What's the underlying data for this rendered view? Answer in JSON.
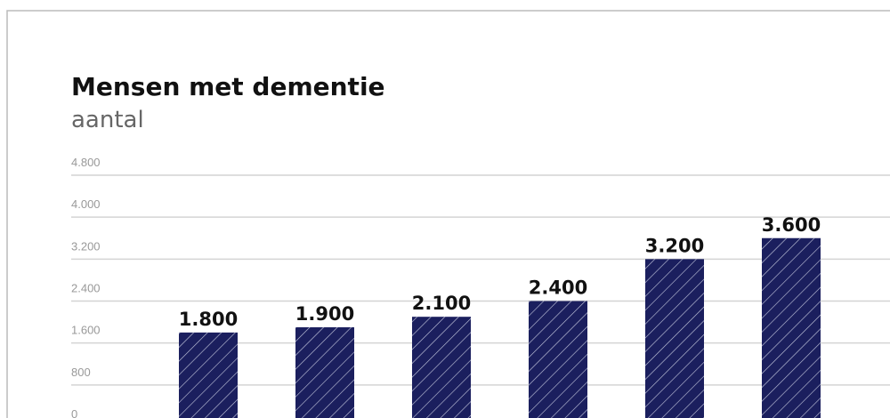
{
  "chart_data": {
    "type": "bar",
    "title": "Mensen met dementie",
    "subtitle": "aantal",
    "categories": [
      null,
      null,
      null,
      null,
      null,
      null
    ],
    "values": [
      1800,
      1900,
      2100,
      2400,
      3200,
      3600
    ],
    "value_labels": [
      "1.800",
      "1.900",
      "2.100",
      "2.400",
      "3.200",
      "3.600"
    ],
    "color": "#1b1f5e",
    "ylim": [
      0,
      4800
    ],
    "yticks": [
      0,
      {
        "value": 800,
        "label": "800"
      },
      {
        "value": 1600,
        "label": "1.600"
      },
      {
        "value": 2400,
        "label": "2.400"
      },
      {
        "value": 3200,
        "label": "3.200"
      },
      {
        "value": 4000,
        "label": "4.000"
      },
      {
        "value": 4800,
        "label": "4.800"
      }
    ],
    "grid": true
  }
}
